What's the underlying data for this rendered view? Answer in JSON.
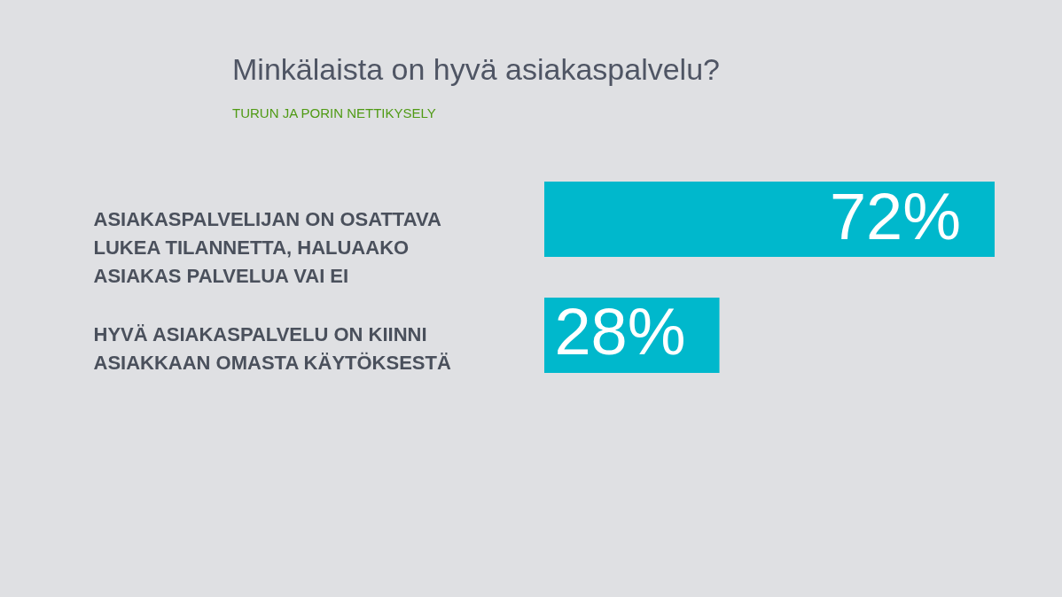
{
  "chart_data": {
    "type": "bar",
    "orientation": "horizontal",
    "title": "Minkälaista on hyvä asiakaspalvelu?",
    "subtitle": "TURUN JA PORIN NETTIKYSELY",
    "categories": [
      "ASIAKASPALVELIJAN ON OSATTAVA LUKEA TILANNETTA, HALUAAKO ASIAKAS PALVELUA VAI EI",
      "HYVÄ ASIAKASPALVELU ON KIINNI ASIAKKAAN OMASTA KÄYTÖKSESTÄ"
    ],
    "values": [
      72,
      28
    ],
    "color": "#00b8cc",
    "value_labels": [
      "72%",
      "28%"
    ],
    "tick_labels": "y"
  }
}
